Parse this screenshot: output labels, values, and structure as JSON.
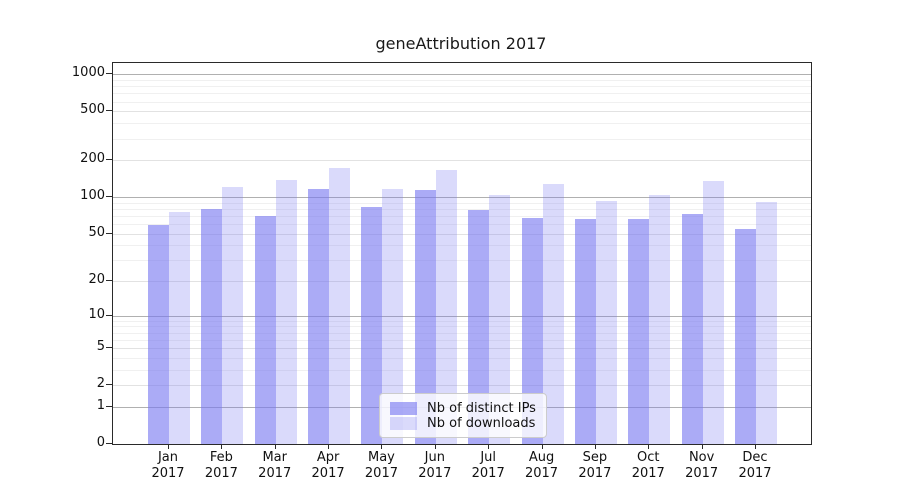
{
  "chart_data": {
    "type": "bar",
    "title": "geneAttribution 2017",
    "categories": [
      "Jan 2017",
      "Feb 2017",
      "Mar 2017",
      "Apr 2017",
      "May 2017",
      "Jun 2017",
      "Jul 2017",
      "Aug 2017",
      "Sep 2017",
      "Oct 2017",
      "Nov 2017",
      "Dec 2017"
    ],
    "series": [
      {
        "name": "Nb of distinct IPs",
        "color": "#7878f0",
        "opacity": 0.62,
        "values": [
          59,
          80,
          70,
          116,
          83,
          115,
          78,
          67,
          66,
          66,
          73,
          55
        ]
      },
      {
        "name": "Nb of downloads",
        "color": "#7878f0",
        "opacity": 0.27,
        "values": [
          75,
          120,
          139,
          173,
          116,
          166,
          104,
          128,
          93,
          104,
          135,
          91
        ]
      }
    ],
    "yscale": "log1p",
    "yticks": [
      0,
      1,
      2,
      5,
      10,
      20,
      50,
      100,
      200,
      500,
      1000
    ],
    "ylim": [
      0,
      1236
    ],
    "xlabel": "",
    "ylabel": "",
    "grid": true,
    "legend_position": "bottom-center"
  },
  "colors": {
    "bar_base": "#7878f0",
    "grid_major": "#b0b0b0",
    "grid_light": "#e2e2e2",
    "grid_minor": "#f0f0f0",
    "axis": "#2a2a2a",
    "background": "#ffffff"
  }
}
